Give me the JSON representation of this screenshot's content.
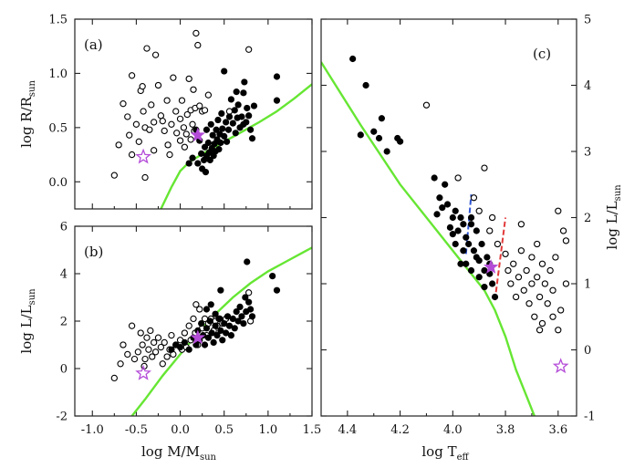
{
  "colors": {
    "track": "#66e633",
    "star": "#b44cd8",
    "filled": "#000000",
    "open": "#000000",
    "blue_edge": "#2f55d4",
    "red_edge": "#e23a3a",
    "frame": "#222222"
  },
  "chart_data": [
    {
      "id": "a",
      "type": "scatter",
      "panel_label": "(a)",
      "xlim": [
        -1.2,
        1.5
      ],
      "ylim": [
        -0.25,
        1.5
      ],
      "xticks": [
        -1.0,
        -0.5,
        0.0,
        0.5,
        1.0,
        1.5
      ],
      "xtick_labels": [],
      "yticks": [
        0.0,
        0.5,
        1.0,
        1.5
      ],
      "ytick_labels": [
        "0.0",
        "0.5",
        "1.0",
        "1.5"
      ],
      "ylabel": "log R/R",
      "ylabel_sub": "sun",
      "xlabel": "",
      "open_points": [
        [
          -0.75,
          0.06
        ],
        [
          -0.7,
          0.34
        ],
        [
          -0.65,
          0.72
        ],
        [
          -0.6,
          0.6
        ],
        [
          -0.58,
          0.43
        ],
        [
          -0.55,
          0.98
        ],
        [
          -0.55,
          0.25
        ],
        [
          -0.5,
          0.53
        ],
        [
          -0.47,
          0.37
        ],
        [
          -0.45,
          0.84
        ],
        [
          -0.43,
          0.88
        ],
        [
          -0.42,
          0.65
        ],
        [
          -0.4,
          0.5
        ],
        [
          -0.4,
          0.04
        ],
        [
          -0.38,
          1.23
        ],
        [
          -0.35,
          0.48
        ],
        [
          -0.33,
          0.71
        ],
        [
          -0.3,
          0.55
        ],
        [
          -0.3,
          0.29
        ],
        [
          -0.28,
          1.17
        ],
        [
          -0.25,
          0.89
        ],
        [
          -0.22,
          0.61
        ],
        [
          -0.2,
          0.56
        ],
        [
          -0.18,
          0.47
        ],
        [
          -0.15,
          0.75
        ],
        [
          -0.14,
          0.34
        ],
        [
          -0.12,
          0.25
        ],
        [
          -0.1,
          0.53
        ],
        [
          -0.08,
          0.96
        ],
        [
          -0.05,
          0.65
        ],
        [
          -0.04,
          0.45
        ],
        [
          0.0,
          0.58
        ],
        [
          0.0,
          0.38
        ],
        [
          0.02,
          0.75
        ],
        [
          0.04,
          0.5
        ],
        [
          0.05,
          0.32
        ],
        [
          0.07,
          0.44
        ],
        [
          0.08,
          0.62
        ],
        [
          0.1,
          0.95
        ],
        [
          0.12,
          0.66
        ],
        [
          0.12,
          0.39
        ],
        [
          0.14,
          0.53
        ],
        [
          0.15,
          0.85
        ],
        [
          0.16,
          0.47
        ],
        [
          0.17,
          0.68
        ],
        [
          0.18,
          1.37
        ],
        [
          0.2,
          1.26
        ],
        [
          0.22,
          0.7
        ],
        [
          0.25,
          0.65
        ],
        [
          0.28,
          0.66
        ],
        [
          0.32,
          0.8
        ],
        [
          0.78,
          1.22
        ],
        [
          0.56,
          0.65
        ]
      ],
      "filled_points": [
        [
          0.1,
          0.17
        ],
        [
          0.14,
          0.22
        ],
        [
          0.18,
          0.48
        ],
        [
          0.2,
          0.17
        ],
        [
          0.22,
          0.38
        ],
        [
          0.24,
          0.26
        ],
        [
          0.25,
          0.12
        ],
        [
          0.27,
          0.2
        ],
        [
          0.28,
          0.32
        ],
        [
          0.29,
          0.09
        ],
        [
          0.3,
          0.48
        ],
        [
          0.3,
          0.24
        ],
        [
          0.32,
          0.36
        ],
        [
          0.33,
          0.27
        ],
        [
          0.34,
          0.2
        ],
        [
          0.35,
          0.53
        ],
        [
          0.36,
          0.31
        ],
        [
          0.37,
          0.43
        ],
        [
          0.38,
          0.24
        ],
        [
          0.39,
          0.35
        ],
        [
          0.4,
          0.28
        ],
        [
          0.41,
          0.48
        ],
        [
          0.42,
          0.39
        ],
        [
          0.43,
          0.57
        ],
        [
          0.44,
          0.3
        ],
        [
          0.45,
          0.44
        ],
        [
          0.46,
          0.36
        ],
        [
          0.47,
          0.63
        ],
        [
          0.48,
          0.49
        ],
        [
          0.5,
          0.42
        ],
        [
          0.5,
          1.02
        ],
        [
          0.52,
          0.55
        ],
        [
          0.53,
          0.37
        ],
        [
          0.55,
          0.48
        ],
        [
          0.56,
          0.6
        ],
        [
          0.58,
          0.76
        ],
        [
          0.6,
          0.54
        ],
        [
          0.62,
          0.66
        ],
        [
          0.63,
          0.45
        ],
        [
          0.64,
          0.83
        ],
        [
          0.65,
          0.59
        ],
        [
          0.66,
          0.71
        ],
        [
          0.68,
          0.5
        ],
        [
          0.7,
          0.6
        ],
        [
          0.72,
          0.82
        ],
        [
          0.73,
          0.92
        ],
        [
          0.75,
          0.55
        ],
        [
          0.76,
          0.68
        ],
        [
          0.78,
          0.61
        ],
        [
          0.8,
          0.48
        ],
        [
          0.82,
          0.4
        ],
        [
          0.84,
          0.7
        ],
        [
          0.72,
          0.53
        ],
        [
          1.1,
          0.75
        ],
        [
          1.1,
          0.97
        ]
      ],
      "star_filled": [
        [
          0.2,
          0.43
        ]
      ],
      "star_open": [
        [
          -0.42,
          0.23
        ]
      ],
      "track": [
        [
          -0.22,
          -0.25
        ],
        [
          -0.1,
          -0.05
        ],
        [
          0.0,
          0.1
        ],
        [
          0.1,
          0.18
        ],
        [
          0.3,
          0.28
        ],
        [
          0.5,
          0.37
        ],
        [
          0.7,
          0.46
        ],
        [
          0.9,
          0.55
        ],
        [
          1.1,
          0.65
        ],
        [
          1.3,
          0.77
        ],
        [
          1.5,
          0.9
        ]
      ]
    },
    {
      "id": "b",
      "type": "scatter",
      "panel_label": "(b)",
      "xlim": [
        -1.2,
        1.5
      ],
      "ylim": [
        -2,
        6
      ],
      "xticks": [
        -1.0,
        -0.5,
        0.0,
        0.5,
        1.0,
        1.5
      ],
      "xtick_labels": [
        "-1.0",
        "-0.5",
        "0.0",
        "0.5",
        "1.0",
        "1.5"
      ],
      "yticks": [
        -2,
        0,
        2,
        4,
        6
      ],
      "ytick_labels": [
        "-2",
        "0",
        "2",
        "4",
        "6"
      ],
      "ylabel": "log L/L",
      "ylabel_sub": "sun",
      "xlabel": "log M/M",
      "xlabel_sub": "sun",
      "open_points": [
        [
          -0.75,
          -0.4
        ],
        [
          -0.68,
          0.2
        ],
        [
          -0.65,
          1.0
        ],
        [
          -0.6,
          0.6
        ],
        [
          -0.55,
          1.8
        ],
        [
          -0.52,
          0.4
        ],
        [
          -0.48,
          0.7
        ],
        [
          -0.45,
          1.5
        ],
        [
          -0.43,
          1.0
        ],
        [
          -0.41,
          0.1
        ],
        [
          -0.4,
          0.4
        ],
        [
          -0.38,
          1.3
        ],
        [
          -0.36,
          0.8
        ],
        [
          -0.34,
          1.6
        ],
        [
          -0.32,
          0.5
        ],
        [
          -0.3,
          1.1
        ],
        [
          -0.28,
          0.7
        ],
        [
          -0.25,
          1.3
        ],
        [
          -0.22,
          0.9
        ],
        [
          -0.2,
          0.2
        ],
        [
          -0.18,
          1.1
        ],
        [
          -0.15,
          0.5
        ],
        [
          -0.12,
          0.8
        ],
        [
          -0.1,
          1.4
        ],
        [
          -0.08,
          0.6
        ],
        [
          -0.05,
          1.0
        ],
        [
          0.0,
          1.2
        ],
        [
          0.02,
          0.8
        ],
        [
          0.05,
          1.5
        ],
        [
          0.07,
          0.9
        ],
        [
          0.1,
          1.8
        ],
        [
          0.12,
          1.2
        ],
        [
          0.15,
          2.1
        ],
        [
          0.17,
          1.5
        ],
        [
          0.18,
          2.7
        ],
        [
          0.2,
          1.0
        ],
        [
          0.22,
          2.5
        ],
        [
          0.25,
          1.7
        ],
        [
          0.28,
          2.1
        ],
        [
          0.3,
          1.4
        ],
        [
          0.32,
          1.9
        ],
        [
          0.35,
          2.1
        ],
        [
          0.38,
          1.6
        ],
        [
          0.4,
          2.0
        ],
        [
          0.42,
          1.8
        ],
        [
          0.45,
          2.1
        ],
        [
          0.48,
          1.9
        ],
        [
          0.52,
          2.1
        ],
        [
          0.78,
          3.2
        ],
        [
          0.8,
          2.0
        ]
      ],
      "filled_points": [
        [
          -0.1,
          0.8
        ],
        [
          -0.05,
          1.0
        ],
        [
          0.0,
          0.9
        ],
        [
          0.05,
          1.1
        ],
        [
          0.1,
          0.8
        ],
        [
          0.15,
          1.3
        ],
        [
          0.18,
          1.0
        ],
        [
          0.2,
          1.6
        ],
        [
          0.22,
          1.2
        ],
        [
          0.24,
          1.9
        ],
        [
          0.26,
          1.4
        ],
        [
          0.28,
          1.0
        ],
        [
          0.3,
          1.7
        ],
        [
          0.32,
          1.3
        ],
        [
          0.34,
          2.0
        ],
        [
          0.36,
          1.5
        ],
        [
          0.38,
          1.1
        ],
        [
          0.4,
          1.8
        ],
        [
          0.42,
          1.4
        ],
        [
          0.44,
          2.1
        ],
        [
          0.46,
          1.6
        ],
        [
          0.48,
          1.2
        ],
        [
          0.5,
          1.9
        ],
        [
          0.52,
          1.5
        ],
        [
          0.54,
          2.2
        ],
        [
          0.56,
          1.8
        ],
        [
          0.58,
          1.4
        ],
        [
          0.6,
          2.1
        ],
        [
          0.62,
          1.7
        ],
        [
          0.64,
          2.4
        ],
        [
          0.66,
          2.0
        ],
        [
          0.68,
          2.6
        ],
        [
          0.7,
          2.2
        ],
        [
          0.72,
          1.9
        ],
        [
          0.74,
          3.0
        ],
        [
          0.75,
          2.4
        ],
        [
          0.76,
          4.5
        ],
        [
          0.78,
          2.8
        ],
        [
          0.8,
          2.5
        ],
        [
          0.82,
          2.2
        ],
        [
          1.1,
          3.3
        ],
        [
          1.05,
          3.9
        ],
        [
          0.46,
          3.3
        ],
        [
          0.3,
          2.5
        ],
        [
          0.35,
          2.7
        ],
        [
          0.4,
          2.3
        ]
      ],
      "star_filled": [
        [
          0.2,
          1.3
        ]
      ],
      "star_open": [
        [
          -0.42,
          -0.2
        ]
      ],
      "track": [
        [
          -0.55,
          -2
        ],
        [
          -0.4,
          -1.3
        ],
        [
          -0.2,
          -0.3
        ],
        [
          0.0,
          0.6
        ],
        [
          0.2,
          1.5
        ],
        [
          0.4,
          2.3
        ],
        [
          0.6,
          3.0
        ],
        [
          0.8,
          3.6
        ],
        [
          1.0,
          4.1
        ],
        [
          1.2,
          4.5
        ],
        [
          1.4,
          4.9
        ],
        [
          1.5,
          5.1
        ]
      ]
    },
    {
      "id": "c",
      "type": "scatter",
      "panel_label": "(c)",
      "xlim": [
        4.5,
        3.53
      ],
      "ylim": [
        -1,
        5
      ],
      "xticks": [
        4.4,
        4.2,
        4.0,
        3.8,
        3.6
      ],
      "xtick_labels": [
        "4.4",
        "4.2",
        "4.0",
        "3.8",
        "3.6"
      ],
      "yticks": [
        -1,
        0,
        1,
        2,
        3,
        4,
        5
      ],
      "ytick_labels": [
        "-1",
        "0",
        "1",
        "2",
        "3",
        "4",
        "5"
      ],
      "ylabel": "log L/L",
      "ylabel_sub": "sun",
      "xlabel": "log T",
      "xlabel_sub": "eff",
      "open_points": [
        [
          4.1,
          3.7
        ],
        [
          3.98,
          2.6
        ],
        [
          3.88,
          2.75
        ],
        [
          3.85,
          2.0
        ],
        [
          3.92,
          2.3
        ],
        [
          3.9,
          2.1
        ],
        [
          3.86,
          1.8
        ],
        [
          3.83,
          1.6
        ],
        [
          3.8,
          1.45
        ],
        [
          3.79,
          1.2
        ],
        [
          3.78,
          1.0
        ],
        [
          3.77,
          1.3
        ],
        [
          3.76,
          0.8
        ],
        [
          3.75,
          1.1
        ],
        [
          3.74,
          1.5
        ],
        [
          3.73,
          0.9
        ],
        [
          3.72,
          1.2
        ],
        [
          3.71,
          0.7
        ],
        [
          3.7,
          1.0
        ],
        [
          3.7,
          1.4
        ],
        [
          3.69,
          0.5
        ],
        [
          3.68,
          1.1
        ],
        [
          3.67,
          0.8
        ],
        [
          3.66,
          1.3
        ],
        [
          3.66,
          0.4
        ],
        [
          3.65,
          1.0
        ],
        [
          3.64,
          0.7
        ],
        [
          3.63,
          1.2
        ],
        [
          3.62,
          0.5
        ],
        [
          3.62,
          0.9
        ],
        [
          3.61,
          1.4
        ],
        [
          3.6,
          2.1
        ],
        [
          3.6,
          0.3
        ],
        [
          3.58,
          1.8
        ],
        [
          3.57,
          1.65
        ],
        [
          3.57,
          1.0
        ],
        [
          3.59,
          0.6
        ],
        [
          3.67,
          0.3
        ],
        [
          3.68,
          1.6
        ],
        [
          3.74,
          1.9
        ]
      ],
      "filled_points": [
        [
          4.38,
          4.4
        ],
        [
          4.33,
          4.0
        ],
        [
          4.3,
          3.3
        ],
        [
          4.28,
          3.2
        ],
        [
          4.27,
          3.5
        ],
        [
          4.25,
          3.0
        ],
        [
          4.21,
          3.2
        ],
        [
          4.2,
          3.15
        ],
        [
          4.35,
          3.25
        ],
        [
          4.07,
          2.6
        ],
        [
          4.05,
          2.3
        ],
        [
          4.03,
          2.5
        ],
        [
          4.02,
          2.2
        ],
        [
          4.0,
          2.0
        ],
        [
          3.99,
          2.1
        ],
        [
          3.98,
          1.8
        ],
        [
          3.97,
          2.0
        ],
        [
          3.96,
          1.9
        ],
        [
          3.95,
          1.7
        ],
        [
          3.94,
          1.6
        ],
        [
          3.93,
          2.0
        ],
        [
          3.92,
          1.5
        ],
        [
          3.91,
          1.8
        ],
        [
          3.9,
          1.35
        ],
        [
          3.89,
          1.6
        ],
        [
          3.88,
          1.2
        ],
        [
          3.87,
          1.4
        ],
        [
          3.86,
          1.3
        ],
        [
          3.85,
          1.0
        ],
        [
          3.84,
          0.8
        ],
        [
          4.06,
          2.05
        ],
        [
          4.0,
          1.75
        ],
        [
          3.96,
          1.5
        ],
        [
          3.95,
          1.3
        ],
        [
          3.93,
          1.2
        ],
        [
          3.9,
          1.1
        ],
        [
          3.88,
          0.95
        ],
        [
          4.01,
          1.85
        ],
        [
          3.99,
          1.6
        ],
        [
          3.97,
          1.3
        ],
        [
          4.04,
          2.15
        ],
        [
          3.93,
          1.9
        ],
        [
          3.91,
          1.4
        ],
        [
          3.86,
          1.15
        ]
      ],
      "star_filled": [
        [
          3.855,
          1.25
        ]
      ],
      "star_open": [
        [
          3.59,
          -0.25
        ]
      ],
      "track": [
        [
          4.5,
          4.35
        ],
        [
          4.35,
          3.4
        ],
        [
          4.2,
          2.5
        ],
        [
          4.05,
          1.75
        ],
        [
          3.95,
          1.25
        ],
        [
          3.88,
          0.9
        ],
        [
          3.84,
          0.6
        ],
        [
          3.8,
          0.2
        ],
        [
          3.76,
          -0.3
        ],
        [
          3.72,
          -0.7
        ],
        [
          3.69,
          -1.0
        ]
      ],
      "blue_edge": [
        [
          3.95,
          1.45
        ],
        [
          3.93,
          2.35
        ]
      ],
      "red_edge": [
        [
          3.84,
          0.75
        ],
        [
          3.8,
          2.0
        ]
      ]
    }
  ]
}
